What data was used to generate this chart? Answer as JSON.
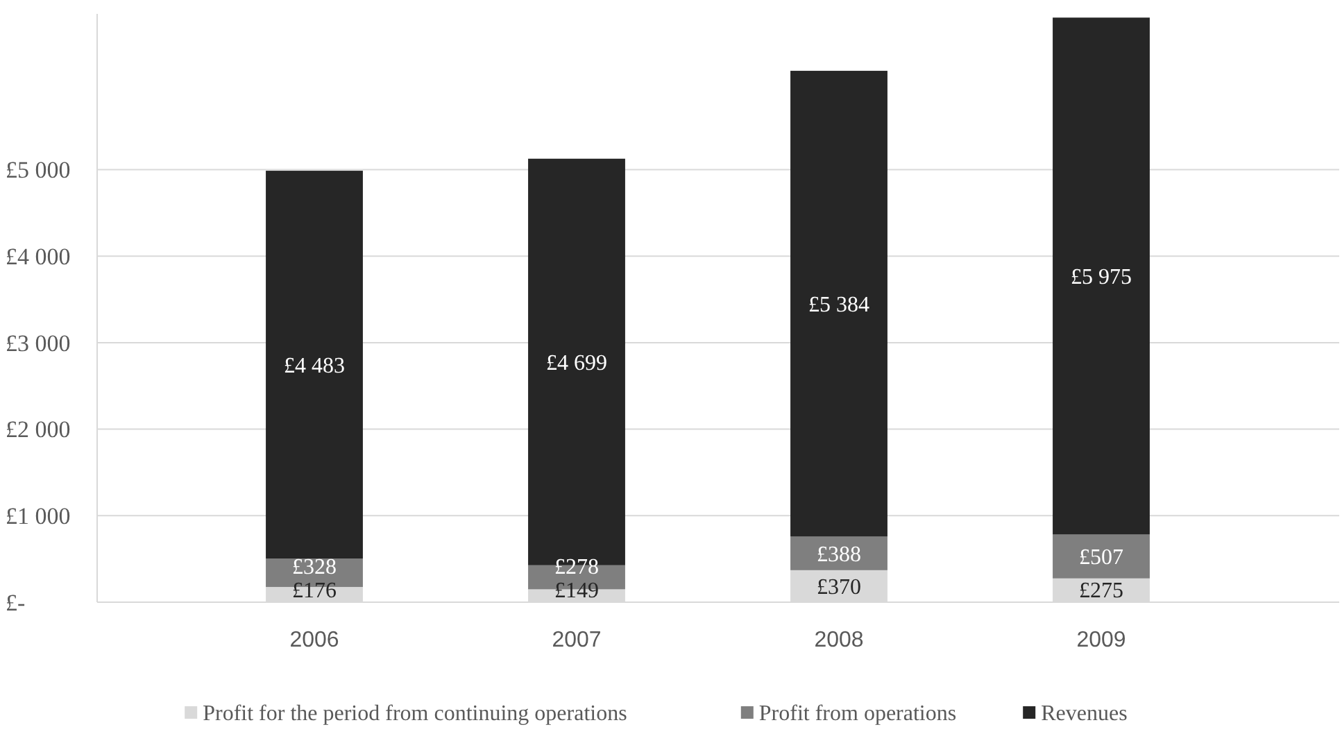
{
  "chart_data": {
    "type": "bar",
    "stacked": true,
    "categories": [
      "2006",
      "2007",
      "2008",
      "2009"
    ],
    "series": [
      {
        "name": "Profit for the period from continuing operations",
        "color": "#d9d9d9",
        "values": [
          176,
          149,
          370,
          275
        ],
        "value_labels": [
          "£176",
          "£149",
          "£370",
          "£275"
        ]
      },
      {
        "name": "Profit from operations",
        "color": "#7f7f7f",
        "values": [
          328,
          278,
          388,
          507
        ],
        "value_labels": [
          "£328",
          "£278",
          "£388",
          "£507"
        ]
      },
      {
        "name": "Revenues",
        "color": "#262626",
        "values": [
          4483,
          4699,
          5384,
          5975
        ],
        "value_labels": [
          "£4 483",
          "£4 699",
          "£5 384",
          "£5 975"
        ]
      }
    ],
    "ylim": [
      0,
      6800
    ],
    "yticks": [
      {
        "value": 0,
        "label": "£-"
      },
      {
        "value": 1000,
        "label": "£1 000"
      },
      {
        "value": 2000,
        "label": "£2 000"
      },
      {
        "value": 3000,
        "label": "£3 000"
      },
      {
        "value": 4000,
        "label": "£4 000"
      },
      {
        "value": 5000,
        "label": "£5 000"
      }
    ],
    "grid": "y",
    "legend": "bottom"
  }
}
